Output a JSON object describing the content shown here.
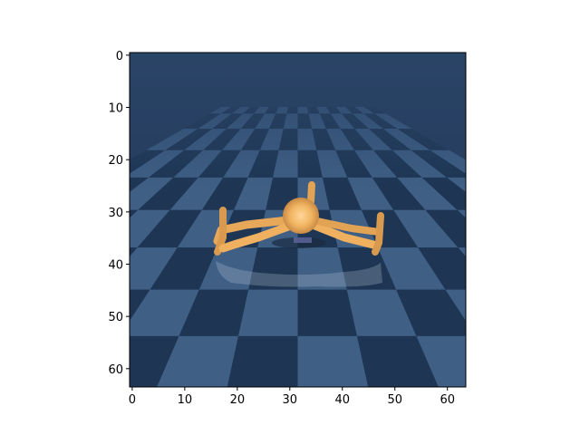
{
  "figure": {
    "image_description_icon": "ant-robot-on-checkerboard-render",
    "axes": {
      "x_ticks": [
        "0",
        "10",
        "20",
        "30",
        "40",
        "50",
        "60"
      ],
      "y_ticks": [
        "0",
        "10",
        "20",
        "30",
        "40",
        "50",
        "60"
      ],
      "x_range": [
        -0.5,
        63.5
      ],
      "y_range": [
        63.5,
        -0.5
      ],
      "y_inverted": true
    },
    "colors": {
      "floor_dark": "#1e3654",
      "floor_light": "#3f5f85",
      "sky": "#2a4466",
      "robot_body": "#f2b96a",
      "robot_shadow": "#1a2b40"
    }
  }
}
